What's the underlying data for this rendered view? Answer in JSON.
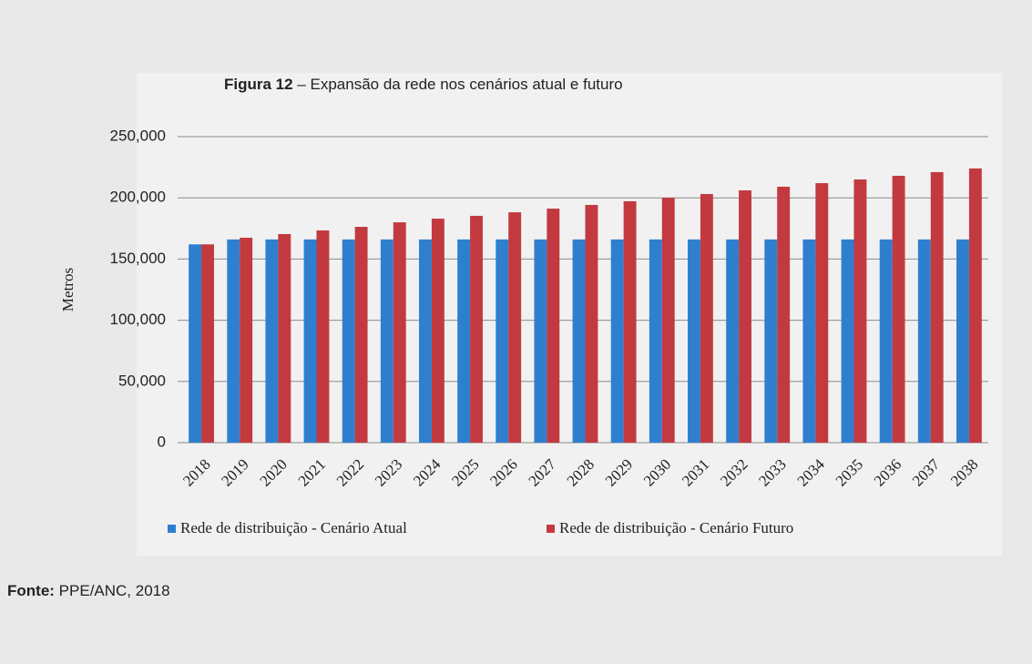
{
  "chart_data": {
    "type": "bar",
    "figure_label": "Figura 12",
    "title": "– Expansão da rede nos cenários atual e futuro",
    "y_label": "Metros",
    "categories": [
      "2018",
      "2019",
      "2020",
      "2021",
      "2022",
      "2023",
      "2024",
      "2025",
      "2026",
      "2027",
      "2028",
      "2029",
      "2030",
      "2031",
      "2032",
      "2033",
      "2034",
      "2035",
      "2036",
      "2037",
      "2038"
    ],
    "series": [
      {
        "name": "Rede de distribuição - Cenário Atual",
        "color": "#2f7fcf",
        "values": [
          162000,
          166000,
          166000,
          166000,
          166000,
          166000,
          166000,
          166000,
          166000,
          166000,
          166000,
          166000,
          166000,
          166000,
          166000,
          166000,
          166000,
          166000,
          166000,
          166000,
          166000
        ]
      },
      {
        "name": "Rede de distribuição - Cenário Futuro",
        "color": "#c23a40",
        "values": [
          162000,
          167400,
          170400,
          173400,
          176300,
          180000,
          183000,
          185300,
          188200,
          191200,
          194200,
          197200,
          200100,
          203100,
          206100,
          209100,
          212000,
          215000,
          218000,
          221000,
          224000
        ]
      }
    ],
    "ylim": [
      0,
      250000
    ],
    "yticks": [
      0,
      {
        "value": 50000,
        "label": "50,000"
      },
      {
        "value": 100000,
        "label": "100,000"
      },
      {
        "value": 150000,
        "label": "150,000"
      },
      {
        "value": 200000,
        "label": "200,000"
      },
      {
        "value": 250000,
        "label": "250,000"
      }
    ],
    "grid": true,
    "source_label": "Fonte:",
    "source": "PPE/ANC, 2018"
  }
}
